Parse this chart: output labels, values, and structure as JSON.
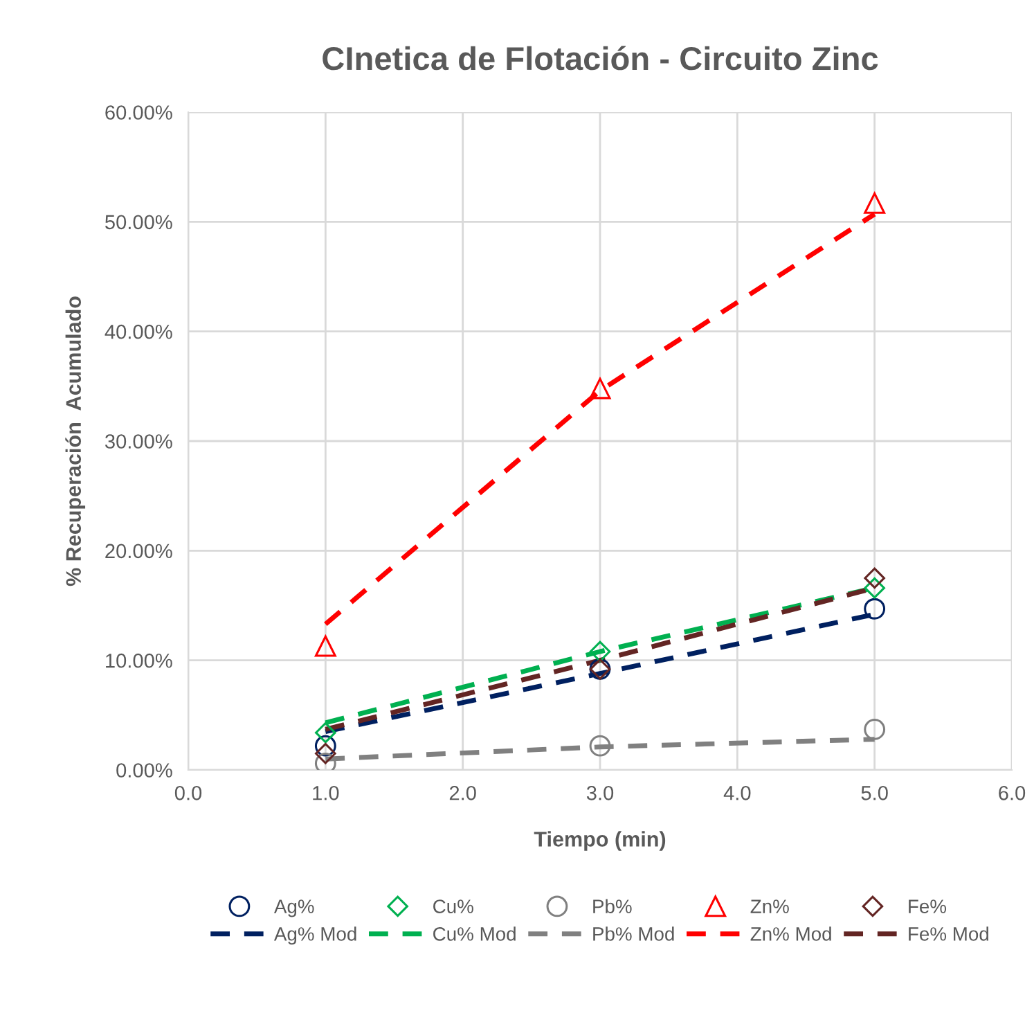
{
  "chart_data": {
    "type": "scatter",
    "title": "CInetica de Flotación - Circuito Zinc",
    "xlabel": "Tiempo (min)",
    "ylabel": "% Recuperación  Acumulado",
    "x": [
      1.0,
      3.0,
      5.0
    ],
    "series": [
      {
        "name": "Ag%",
        "color": "#002060",
        "marker": "circle",
        "values": [
          2.2,
          9.2,
          14.7
        ]
      },
      {
        "name": "Cu%",
        "color": "#00b050",
        "marker": "diamond",
        "values": [
          3.4,
          10.8,
          16.6
        ]
      },
      {
        "name": "Pb%",
        "color": "#808080",
        "marker": "circle",
        "values": [
          0.6,
          2.2,
          3.7
        ]
      },
      {
        "name": "Zn%",
        "color": "#ff0000",
        "marker": "triangle",
        "values": [
          11.3,
          34.8,
          51.7
        ]
      },
      {
        "name": "Fe%",
        "color": "#632523",
        "marker": "diamond",
        "values": [
          1.5,
          9.2,
          17.5
        ]
      },
      {
        "name": "Ag% Mod",
        "color": "#002060",
        "type": "line",
        "line_style": "dashed",
        "values": [
          3.5,
          8.8,
          14.2
        ]
      },
      {
        "name": "Cu% Mod",
        "color": "#00b050",
        "type": "line",
        "line_style": "dashed",
        "values": [
          4.3,
          10.8,
          16.6
        ]
      },
      {
        "name": "Pb% Mod",
        "color": "#808080",
        "type": "line",
        "line_style": "dashed",
        "values": [
          1.0,
          2.1,
          2.8
        ]
      },
      {
        "name": "Zn% Mod",
        "color": "#ff0000",
        "type": "line",
        "line_style": "dashed",
        "values": [
          13.3,
          34.6,
          50.7
        ]
      },
      {
        "name": "Fe% Mod",
        "color": "#632523",
        "type": "line",
        "line_style": "dashed",
        "values": [
          3.7,
          10.0,
          16.6
        ]
      }
    ],
    "xlim": [
      0,
      6
    ],
    "xticks": [
      {
        "value": 0,
        "label": "0.0"
      },
      {
        "value": 1,
        "label": "1.0"
      },
      {
        "value": 2,
        "label": "2.0"
      },
      {
        "value": 3,
        "label": "3.0"
      },
      {
        "value": 4,
        "label": "4.0"
      },
      {
        "value": 5,
        "label": "5.0"
      },
      {
        "value": 6,
        "label": "6.0"
      }
    ],
    "ylim": [
      0,
      60
    ],
    "yticks": [
      {
        "value": 0,
        "label": "0.00%"
      },
      {
        "value": 10,
        "label": "10.00%"
      },
      {
        "value": 20,
        "label": "20.00%"
      },
      {
        "value": 30,
        "label": "30.00%"
      },
      {
        "value": 40,
        "label": "40.00%"
      },
      {
        "value": 50,
        "label": "50.00%"
      },
      {
        "value": 60,
        "label": "60.00%"
      }
    ],
    "grid": true,
    "legend": "bottom"
  }
}
